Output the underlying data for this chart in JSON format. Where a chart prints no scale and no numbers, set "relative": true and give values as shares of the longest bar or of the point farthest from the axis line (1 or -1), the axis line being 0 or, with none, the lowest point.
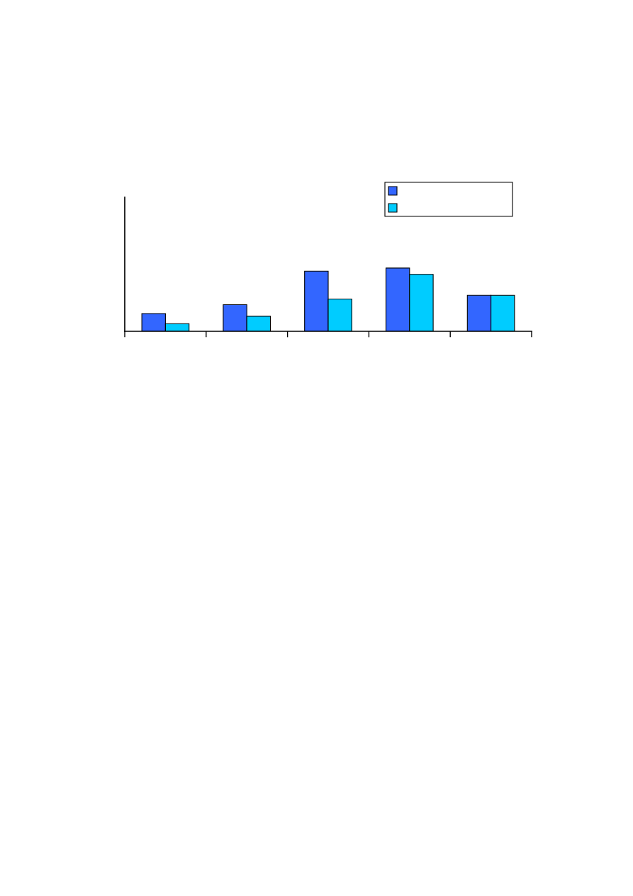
{
  "chart_data": {
    "type": "bar",
    "relative": true,
    "categories": [
      null,
      null,
      null,
      null,
      null
    ],
    "series": [
      {
        "color": "#3366ff",
        "values": [
          0.28,
          0.42,
          0.95,
          1,
          0.57
        ]
      },
      {
        "color": "#00ccff",
        "values": [
          0.12,
          0.24,
          0.51,
          0.9,
          0.57
        ]
      }
    ]
  }
}
